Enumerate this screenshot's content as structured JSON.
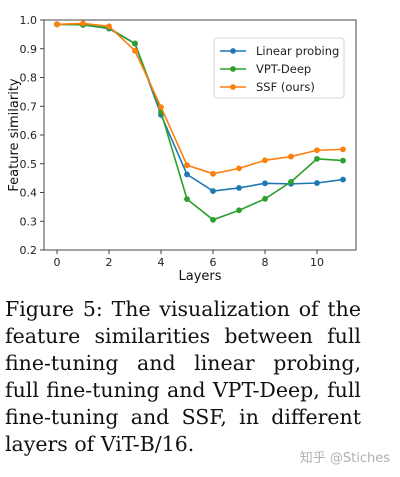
{
  "chart_data": {
    "type": "line",
    "xlabel": "Layers",
    "ylabel": "Feature similarity",
    "xlim": [
      -0.5,
      11.5
    ],
    "ylim": [
      0.2,
      1.0
    ],
    "xticks": [
      0,
      2,
      4,
      6,
      8,
      10
    ],
    "yticks": [
      0.2,
      0.3,
      0.4,
      0.5,
      0.6,
      0.7,
      0.8,
      0.9,
      1.0
    ],
    "grid": false,
    "legend_position": "top-right",
    "x": [
      0,
      1,
      2,
      3,
      4,
      5,
      6,
      7,
      8,
      9,
      10,
      11
    ],
    "series": [
      {
        "name": "Linear probing",
        "color": "#1f77b4",
        "values": [
          0.985,
          0.983,
          0.97,
          0.918,
          0.67,
          0.463,
          0.405,
          0.416,
          0.432,
          0.43,
          0.433,
          0.445
        ]
      },
      {
        "name": "VPT-Deep",
        "color": "#2ca02c",
        "values": [
          0.985,
          0.983,
          0.972,
          0.918,
          0.68,
          0.377,
          0.305,
          0.338,
          0.378,
          0.437,
          0.517,
          0.511
        ]
      },
      {
        "name": "SSF (ours)",
        "color": "#ff7f0e",
        "values": [
          0.985,
          0.988,
          0.978,
          0.893,
          0.697,
          0.495,
          0.465,
          0.484,
          0.512,
          0.525,
          0.547,
          0.55
        ]
      }
    ]
  },
  "caption": "Figure 5: The visualization of the feature similarities between full fine-tuning and linear probing, full fine-tuning and VPT-Deep, full fine-tuning and SSF, in different layers of ViT-B/16.",
  "watermark": "知乎 @Stiches"
}
